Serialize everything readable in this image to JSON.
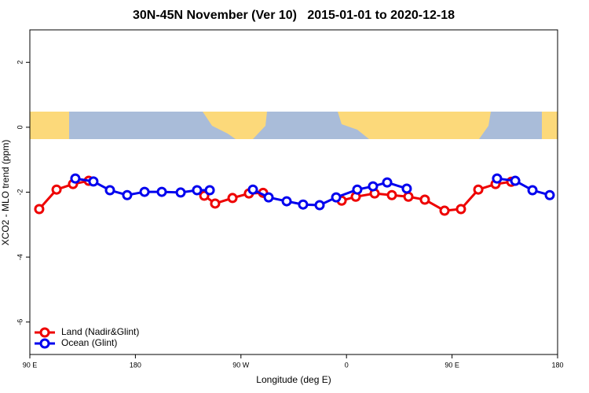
{
  "chart_data": {
    "type": "line",
    "title": "30N-45N November (Ver 10)   2015-01-01 to 2020-12-18",
    "x_label": "Longitude (deg E)",
    "y_label": "XCO2 - MLO trend (ppm)",
    "xlim": [
      90,
      540
    ],
    "ylim": [
      -7,
      3
    ],
    "xticks": [
      {
        "value": 90,
        "label": "90 E"
      },
      {
        "value": 180,
        "label": "180"
      },
      {
        "value": 270,
        "label": "90 W"
      },
      {
        "value": 360,
        "label": "0"
      },
      {
        "value": 450,
        "label": "90 E"
      },
      {
        "value": 540,
        "label": "180"
      }
    ],
    "yticks": [
      -6,
      -4,
      -2,
      0,
      2
    ],
    "legend": "bottom-left",
    "series": [
      {
        "name": "Land (Nadir&Glint)",
        "color": "#ee0000",
        "x": [
          98.0,
          112.8,
          126.8,
          140.2,
          null,
          238.7,
          248.0,
          262.8,
          276.8,
          288.9,
          null,
          355.9,
          367.9,
          384.0,
          398.7,
          412.8,
          426.8,
          443.6,
          457.6,
          472.4,
          487.1,
          500.5
        ],
        "values": [
          -2.52,
          -1.92,
          -1.75,
          -1.65,
          null,
          -2.11,
          -2.35,
          -2.18,
          -2.04,
          -2.02,
          null,
          -2.26,
          -2.14,
          -2.04,
          -2.09,
          -2.14,
          -2.23,
          -2.57,
          -2.52,
          -1.92,
          -1.75,
          -1.68
        ]
      },
      {
        "name": "Ocean (Glint)",
        "color": "#0000ee",
        "x": [
          128.8,
          144.2,
          158.3,
          173.0,
          187.8,
          202.5,
          218.6,
          232.6,
          243.4,
          null,
          280.2,
          293.6,
          309.0,
          323.0,
          337.1,
          351.2,
          369.2,
          382.6,
          394.7,
          411.4,
          null,
          488.4,
          503.9,
          518.6,
          533.3
        ],
        "values": [
          -1.58,
          -1.67,
          -1.94,
          -2.09,
          -1.99,
          -1.99,
          -2.01,
          -1.94,
          -1.94,
          null,
          -1.92,
          -2.16,
          -2.28,
          -2.38,
          -2.4,
          -2.16,
          -1.92,
          -1.82,
          -1.7,
          -1.89,
          null,
          -1.58,
          -1.65,
          -1.94,
          -2.09
        ]
      }
    ]
  }
}
